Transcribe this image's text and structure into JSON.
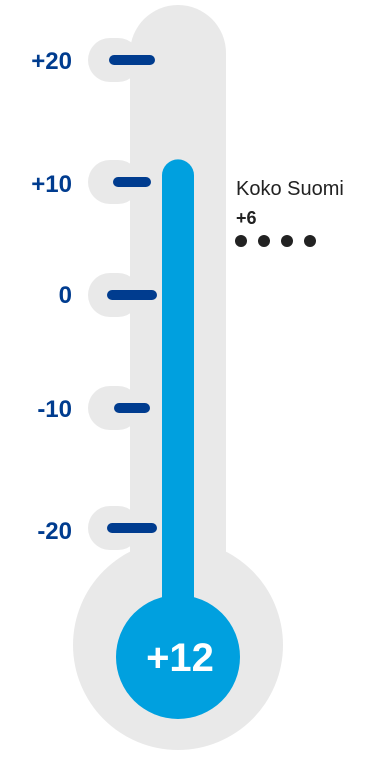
{
  "chart_data": {
    "type": "thermometer",
    "title": "",
    "ticks": [
      {
        "value": 20,
        "label": "+20"
      },
      {
        "value": 10,
        "label": "+10"
      },
      {
        "value": 0,
        "label": "0"
      },
      {
        "value": -10,
        "label": "-10"
      },
      {
        "value": -20,
        "label": "-20"
      }
    ],
    "range": [
      -20,
      20
    ],
    "value": 12,
    "value_label": "+12",
    "reference": {
      "name": "Koko Suomi",
      "value": 6,
      "value_label": "+6"
    },
    "colors": {
      "tube_bg": "#e9e9e9",
      "mercury": "#00a0df",
      "tick": "#003c8f",
      "label": "#003c8f",
      "reference_text": "#222222"
    }
  }
}
